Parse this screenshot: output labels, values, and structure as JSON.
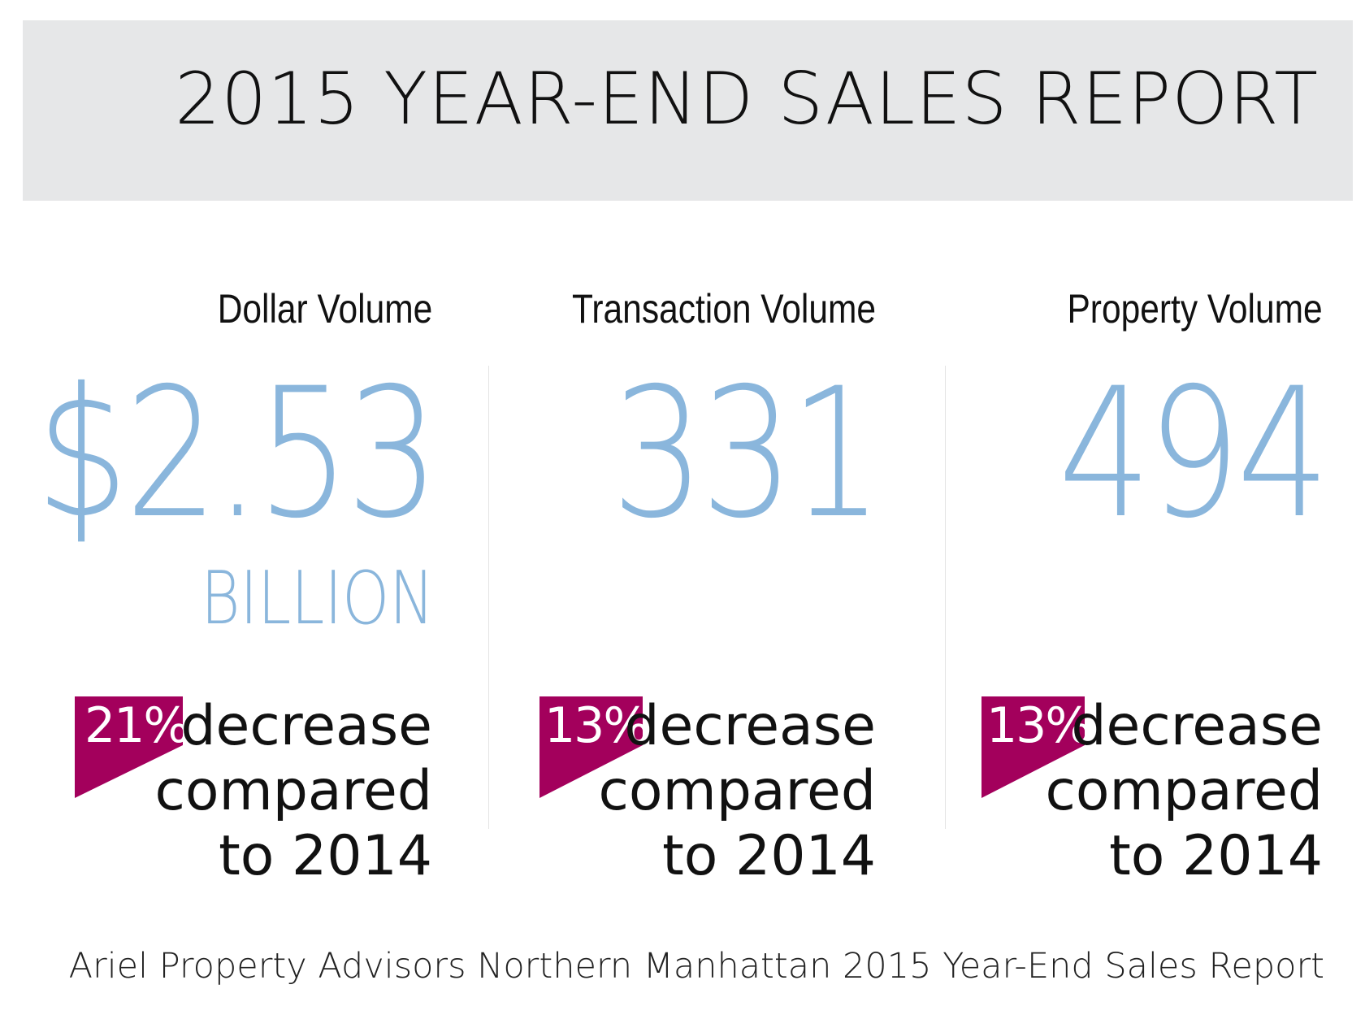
{
  "header": {
    "title": "2015 YEAR-END SALES REPORT"
  },
  "colors": {
    "header_background": "#e6e7e8",
    "value_blue": "#8ab6dc",
    "flag_magenta": "#a3005c",
    "text_dark": "#111111"
  },
  "metrics": [
    {
      "label": "Dollar Volume",
      "value": "$2.53",
      "unit": "BILLION",
      "change_pct": "21%",
      "change_word": "decrease",
      "change_line2": "compared",
      "change_line3": "to 2014"
    },
    {
      "label": "Transaction Volume",
      "value": "331",
      "unit": "",
      "change_pct": "13%",
      "change_word": "decrease",
      "change_line2": "compared",
      "change_line3": "to 2014"
    },
    {
      "label": "Property Volume",
      "value": "494",
      "unit": "",
      "change_pct": "13%",
      "change_word": "decrease",
      "change_line2": "compared",
      "change_line3": "to 2014"
    }
  ],
  "footer": {
    "source": "Ariel Property Advisors Northern Manhattan 2015 Year-End Sales Report"
  }
}
